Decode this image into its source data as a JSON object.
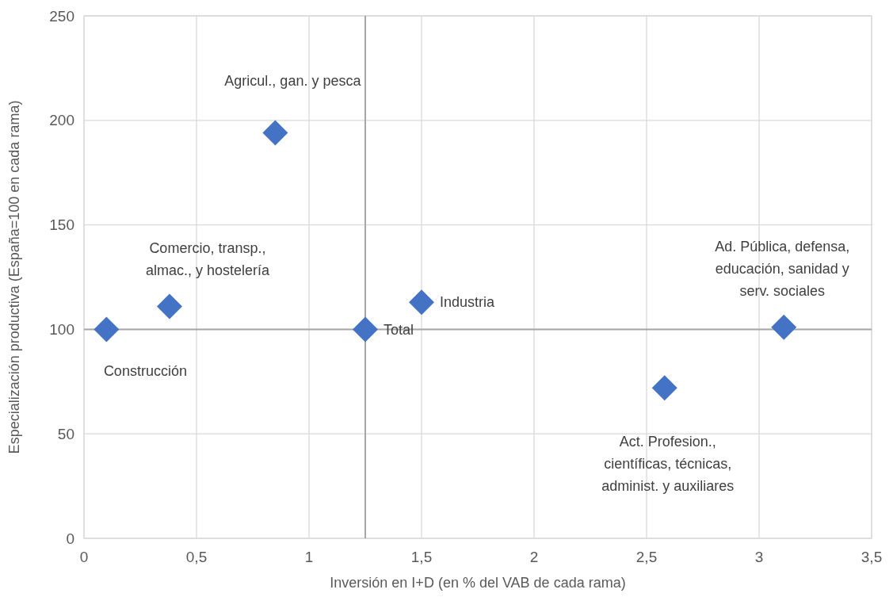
{
  "chart_data": {
    "type": "scatter",
    "xlabel": "Inversión en I+D (en % del VAB de cada rama)",
    "ylabel": "Especialización productiva (España=100 en cada rama)",
    "x": [
      0.1,
      0.38,
      0.85,
      1.25,
      1.5,
      2.58,
      3.11
    ],
    "values": [
      100,
      111,
      194,
      100,
      113,
      72,
      101
    ],
    "color": "#4472c4",
    "marker": "diamond",
    "xlim": [
      0,
      3.5
    ],
    "xticks": [
      {
        "value": 0,
        "label": "0"
      },
      {
        "value": 0.5,
        "label": "0,5"
      },
      {
        "value": 1,
        "label": "1"
      },
      {
        "value": 1.5,
        "label": "1,5"
      },
      {
        "value": 2,
        "label": "2"
      },
      {
        "value": 2.5,
        "label": "2,5"
      },
      {
        "value": 3,
        "label": "3"
      },
      {
        "value": 3.5,
        "label": "3,5"
      }
    ],
    "ylim": [
      0,
      250
    ],
    "yticks": [
      0,
      50,
      100,
      150,
      200,
      250
    ],
    "grid": true,
    "ref_lines": [
      {
        "axis": "x",
        "value": 1.25,
        "color": "#a6a6a6"
      },
      {
        "axis": "y",
        "value": 100,
        "color": "#a6a6a6"
      }
    ],
    "annotations": [
      {
        "text": "Construcción",
        "x": 0.1,
        "y": 100
      },
      {
        "text": "Comercio, transp.,\nalmac., y hostelería",
        "x": 0.38,
        "y": 111
      },
      "Agricul., gan. y pesca",
      {
        "text": "Total",
        "x": 1.25,
        "y": 100
      },
      {
        "text": "Industria",
        "x": 1.5,
        "y": 113
      },
      "Act. Profesion.,\ncientíficas, técnicas,\nadminist. y auxiliares",
      {
        "text": "Ad. Pública, defensa,\neducación, sanidad y\nserv. sociales",
        "x": 3.11,
        "y": 101
      }
    ]
  }
}
